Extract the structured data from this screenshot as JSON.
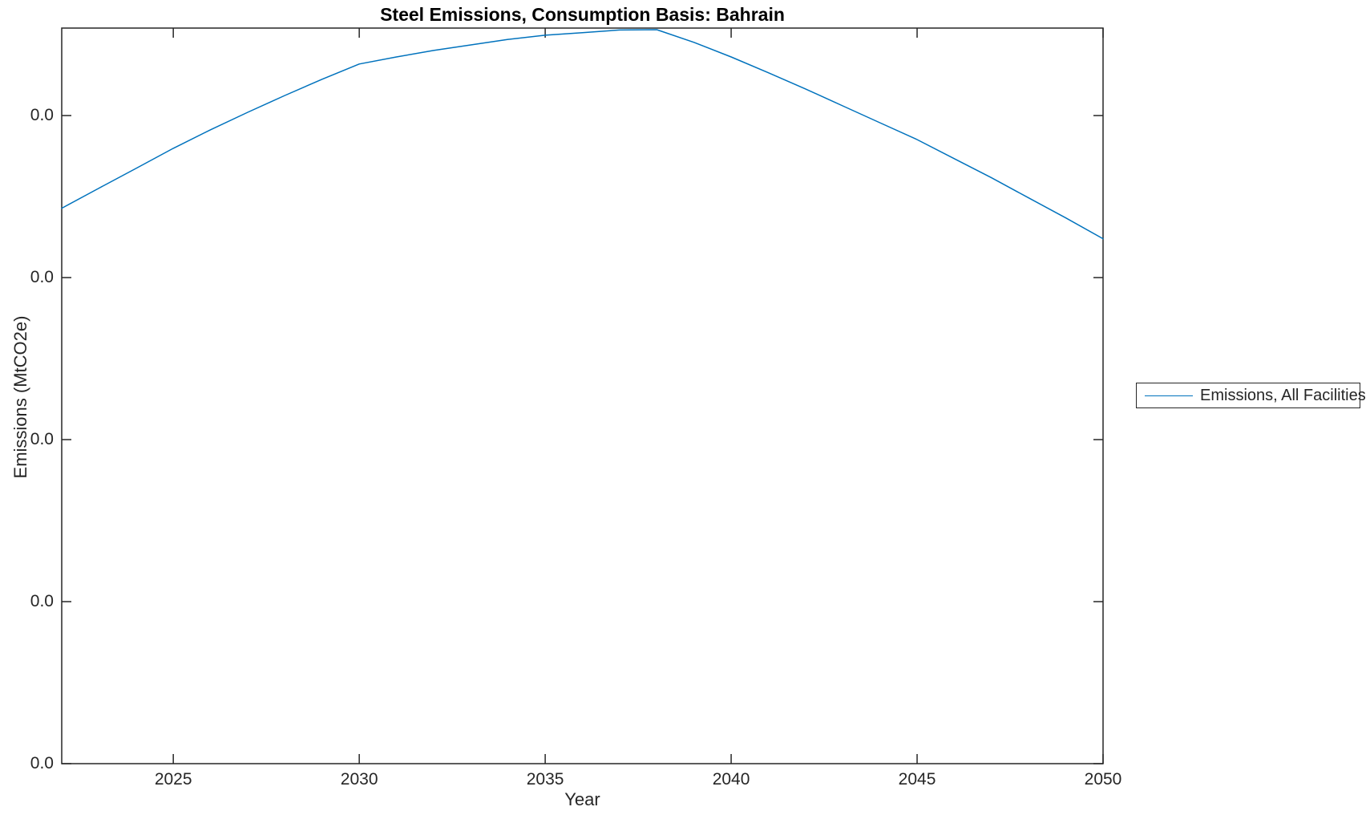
{
  "window": {
    "background_color": "#ffffff"
  },
  "colors": {
    "line": "#0072BD",
    "axis": "#262626",
    "title": "#000000",
    "legend_border": "#262626"
  },
  "chart_data": {
    "type": "line",
    "title": "Steel Emissions, Consumption Basis: Bahrain",
    "xlabel": "Year",
    "ylabel": "Emissions (MtCO2e)",
    "xlim": [
      2022,
      2050
    ],
    "ylim": [
      0,
      0.0227
    ],
    "grid": false,
    "box": true,
    "tick_direction": "in",
    "xticks": [
      2025,
      2030,
      2035,
      2040,
      2045,
      2050
    ],
    "xtick_labels": [
      "2025",
      "2030",
      "2035",
      "2040",
      "2045",
      "2050"
    ],
    "yticks": [
      0,
      0.005,
      0.01,
      0.015,
      0.02
    ],
    "ytick_labels": [
      "0.0",
      "0.0",
      "0.0",
      "0.0",
      "0.0"
    ],
    "legend": {
      "position": "right-outside",
      "entries": [
        "Emissions, All Facilities"
      ]
    },
    "series": [
      {
        "name": "Emissions, All Facilities",
        "color": "#0072BD",
        "x": [
          2022,
          2023,
          2024,
          2025,
          2026,
          2027,
          2028,
          2029,
          2030,
          2031,
          2032,
          2033,
          2034,
          2035,
          2036,
          2037,
          2038,
          2039,
          2040,
          2041,
          2042,
          2043,
          2044,
          2045,
          2046,
          2047,
          2048,
          2049,
          2050
        ],
        "y": [
          0.01714,
          0.01776,
          0.01837,
          0.01899,
          0.01956,
          0.0201,
          0.02062,
          0.02112,
          0.02159,
          0.02181,
          0.02201,
          0.02218,
          0.02235,
          0.02248,
          0.02256,
          0.02264,
          0.02265,
          0.02226,
          0.02181,
          0.02132,
          0.02082,
          0.0203,
          0.01978,
          0.01926,
          0.01867,
          0.01808,
          0.01746,
          0.01684,
          0.0162
        ]
      }
    ]
  }
}
